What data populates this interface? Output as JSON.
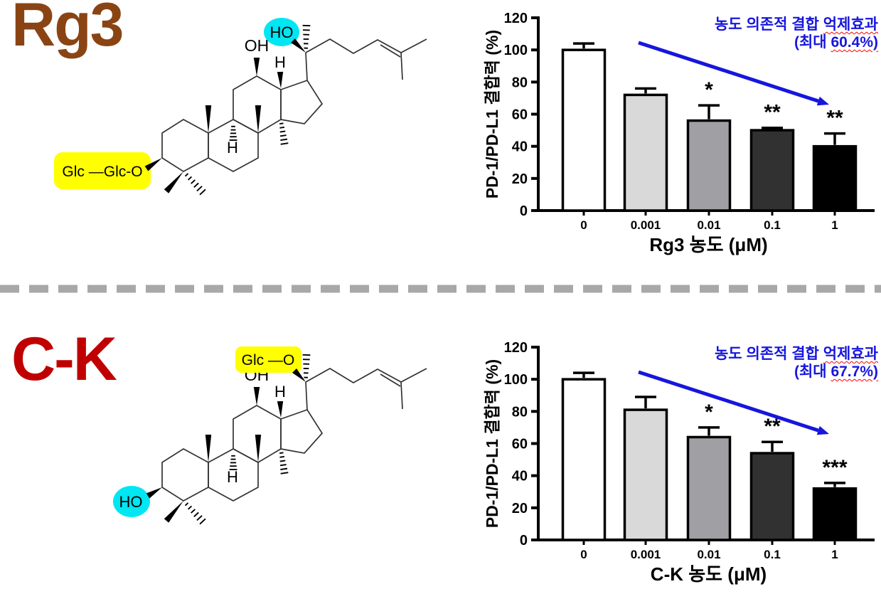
{
  "figure": {
    "background": "#ffffff"
  },
  "divider": {
    "style": "dashed",
    "color": "#a8a8a8"
  },
  "colors": {
    "rg3_title": "#8a4413",
    "ck_title": "#c00000",
    "annotation_blue": "#1616dd",
    "cyan_highlight": "#00e6f2",
    "yellow_highlight": "#ffff00",
    "bond": "#333333"
  },
  "panels": [
    {
      "compound_label": "Rg3",
      "compound_color": "#8a4413",
      "molecule": {
        "c20_group_text": "HO",
        "c20_group_style": "cyan",
        "c12_label": "OH",
        "c13_h_label": "H",
        "c9_h_label": "H",
        "c3_group_text": "Glc —Glc-O",
        "c3_group_style": "yellow"
      },
      "annotation": {
        "line1_normal": "농도 의존적 결합 ",
        "line1_wavy": "억제효과",
        "line2_normal": "(최대 ",
        "line2_wavy": "60.4%)"
      }
    },
    {
      "compound_label": "C-K",
      "compound_color": "#c00000",
      "molecule": {
        "c20_group_text": "Glc —O",
        "c20_group_style": "yellow",
        "c12_label": "OH",
        "c13_h_label": "H",
        "c9_h_label": "H",
        "c3_group_text": "HO",
        "c3_group_style": "cyan"
      },
      "annotation": {
        "line1_normal": "농도 의존적 결합 ",
        "line1_wavy": "억제효과",
        "line2_normal": "(최대 ",
        "line2_wavy": "67.7%)"
      }
    }
  ],
  "chart_data": [
    {
      "type": "bar",
      "title": "",
      "categories": [
        "0",
        "0.001",
        "0.01",
        "0.1",
        "1"
      ],
      "values": [
        100,
        72,
        56,
        50,
        40
      ],
      "errors": [
        4,
        4,
        9.5,
        1.5,
        8
      ],
      "significance": [
        "",
        "",
        "*",
        "**",
        "**"
      ],
      "bar_colors": [
        "#ffffff",
        "#d9d9d9",
        "#a0a0a4",
        "#313131",
        "#000000"
      ],
      "xlabel": "Rg3 농도 (μM)",
      "ylabel": "PD-1/PD-L1 결합력 (%)",
      "ylim": [
        0,
        120
      ],
      "ytick_step": 20,
      "grid": false,
      "legend": "none",
      "trend_arrow": true
    },
    {
      "type": "bar",
      "title": "",
      "categories": [
        "0",
        "0.001",
        "0.01",
        "0.1",
        "1"
      ],
      "values": [
        100,
        81,
        64,
        54,
        32
      ],
      "errors": [
        4,
        8,
        6,
        7,
        3.5
      ],
      "significance": [
        "",
        "",
        "*",
        "**",
        "***"
      ],
      "bar_colors": [
        "#ffffff",
        "#d9d9d9",
        "#a0a0a4",
        "#313131",
        "#000000"
      ],
      "xlabel": "C-K 농도 (μM)",
      "ylabel": "PD-1/PD-L1 결합력 (%)",
      "ylim": [
        0,
        120
      ],
      "ytick_step": 20,
      "grid": false,
      "legend": "none",
      "trend_arrow": true
    }
  ]
}
